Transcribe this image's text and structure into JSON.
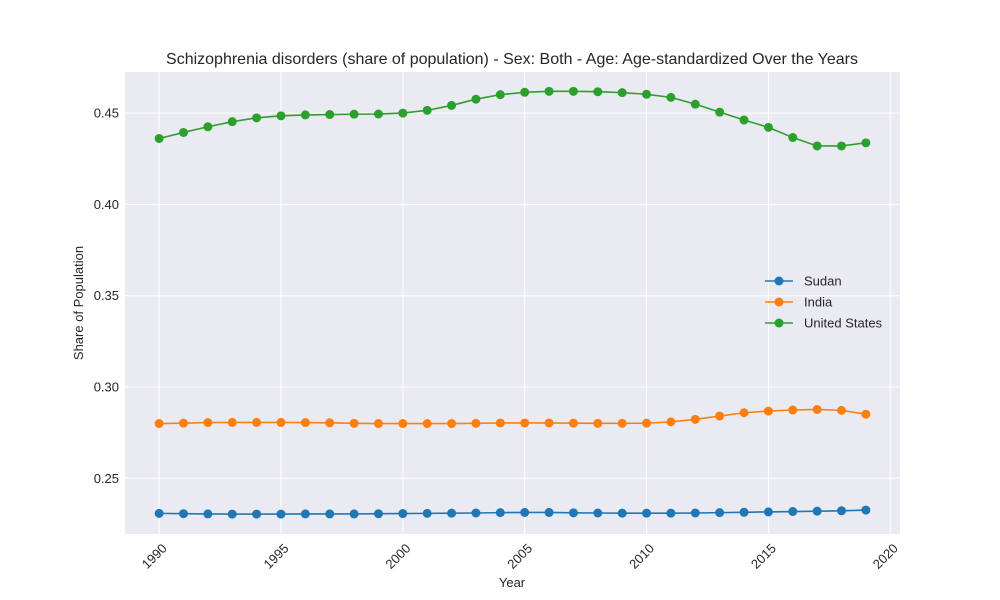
{
  "chart_data": {
    "type": "line",
    "title": "Schizophrenia disorders (share of population) - Sex: Both - Age: Age-standardized Over the Years",
    "xlabel": "Year",
    "ylabel": "Share of Population",
    "xlim": [
      1988.6,
      2020.4
    ],
    "ylim": [
      0.2195,
      0.4725
    ],
    "xticks": [
      1990,
      1995,
      2000,
      2005,
      2010,
      2015,
      2020
    ],
    "yticks": [
      0.25,
      0.3,
      0.35,
      0.4,
      0.45
    ],
    "grid": true,
    "legend_position": "center-right",
    "x": [
      1990,
      1991,
      1992,
      1993,
      1994,
      1995,
      1996,
      1997,
      1998,
      1999,
      2000,
      2001,
      2002,
      2003,
      2004,
      2005,
      2006,
      2007,
      2008,
      2009,
      2010,
      2011,
      2012,
      2013,
      2014,
      2015,
      2016,
      2017,
      2018,
      2019
    ],
    "series": [
      {
        "name": "Sudan",
        "color": "#1f77b4",
        "values": [
          0.2308,
          0.2306,
          0.2305,
          0.2304,
          0.2304,
          0.2304,
          0.2305,
          0.2305,
          0.2305,
          0.2306,
          0.2307,
          0.2308,
          0.2309,
          0.231,
          0.2312,
          0.2313,
          0.2313,
          0.2311,
          0.231,
          0.2309,
          0.2309,
          0.2309,
          0.231,
          0.2312,
          0.2314,
          0.2316,
          0.2318,
          0.232,
          0.2322,
          0.2326
        ]
      },
      {
        "name": "India",
        "color": "#ff7f0e",
        "values": [
          0.28,
          0.2802,
          0.2805,
          0.2806,
          0.2806,
          0.2806,
          0.2805,
          0.2804,
          0.2801,
          0.28,
          0.28,
          0.28,
          0.28,
          0.2801,
          0.2803,
          0.2803,
          0.2803,
          0.2802,
          0.2801,
          0.2801,
          0.2802,
          0.2809,
          0.2823,
          0.2841,
          0.2859,
          0.2868,
          0.2874,
          0.2877,
          0.2872,
          0.2851
        ]
      },
      {
        "name": "United States",
        "color": "#2ca02c",
        "values": [
          0.4361,
          0.4394,
          0.4425,
          0.4453,
          0.4474,
          0.4485,
          0.449,
          0.4492,
          0.4494,
          0.4495,
          0.45,
          0.4515,
          0.4542,
          0.4576,
          0.4601,
          0.4614,
          0.4619,
          0.4619,
          0.4617,
          0.4612,
          0.4603,
          0.4586,
          0.4549,
          0.4505,
          0.4462,
          0.4422,
          0.4366,
          0.432,
          0.432,
          0.4337
        ]
      }
    ]
  }
}
